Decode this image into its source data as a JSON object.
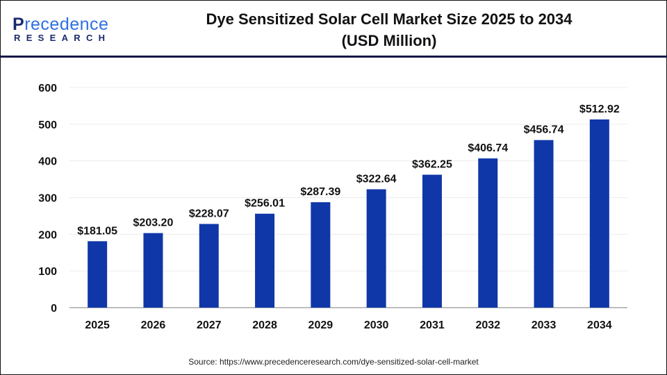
{
  "logo": {
    "line1_a": "P",
    "line1_b": "recedence",
    "line2": "RESEARCH"
  },
  "title": {
    "line1": "Dye Sensitized Solar Cell Market Size 2025 to 2034",
    "line2": "(USD Million)"
  },
  "source": "Source: https://www.precedenceresearch.com/dye-sensitized-solar-cell-market",
  "chart_data": {
    "type": "bar",
    "title": "Dye Sensitized Solar Cell Market Size 2025 to 2034 (USD Million)",
    "xlabel": "",
    "ylabel": "",
    "categories": [
      "2025",
      "2026",
      "2027",
      "2028",
      "2029",
      "2030",
      "2031",
      "2032",
      "2033",
      "2034"
    ],
    "values": [
      181.05,
      203.2,
      228.07,
      256.01,
      287.39,
      322.64,
      362.25,
      406.74,
      456.74,
      512.92
    ],
    "data_labels": [
      "$181.05",
      "$203.20",
      "$228.07",
      "$256.01",
      "$287.39",
      "$322.64",
      "$362.25",
      "$406.74",
      "$456.74",
      "$512.92"
    ],
    "ylim": [
      0,
      600
    ],
    "yticks": [
      0,
      100,
      200,
      300,
      400,
      500,
      600
    ],
    "grid": true,
    "bar_color": "#0f37a8"
  }
}
